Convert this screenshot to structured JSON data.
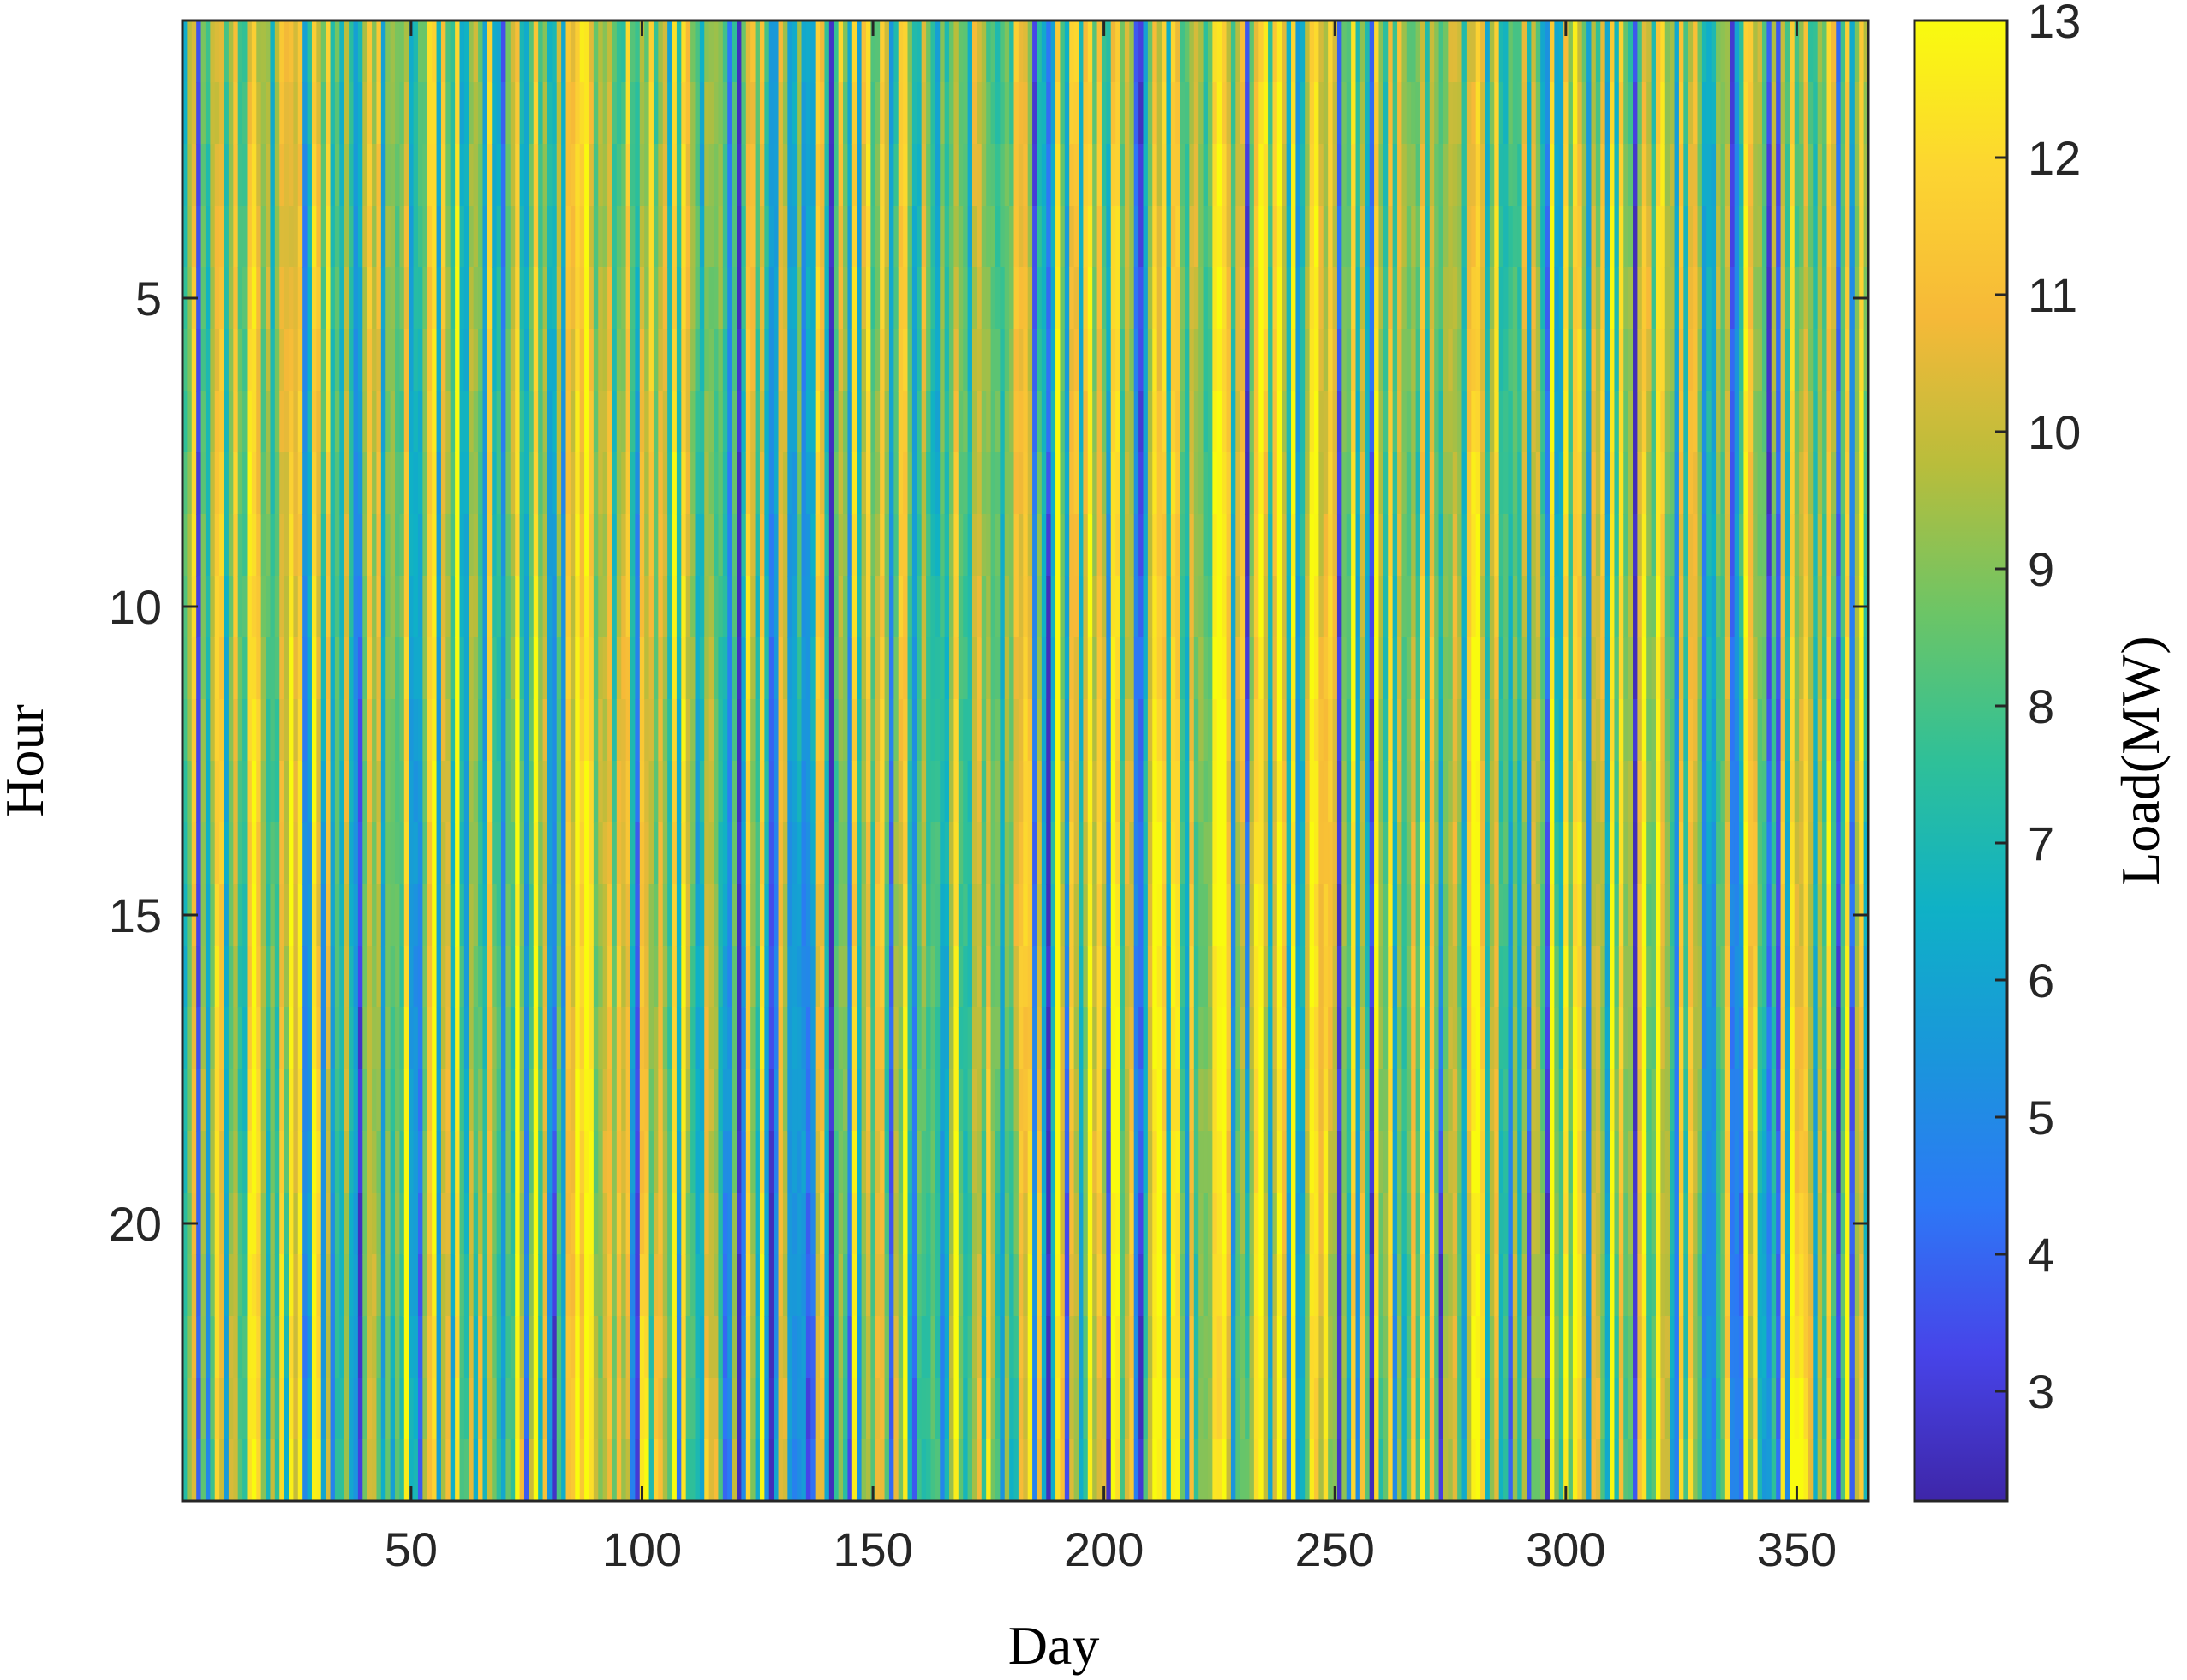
{
  "chart_data": {
    "type": "heatmap",
    "title": "",
    "xlabel": "Day",
    "ylabel": "Hour",
    "xlim": [
      1,
      365
    ],
    "ylim": [
      1,
      24
    ],
    "y_reversed": true,
    "x_ticks": [
      "50",
      "100",
      "150",
      "200",
      "250",
      "300",
      "350"
    ],
    "x_tick_values": [
      50,
      100,
      150,
      200,
      250,
      300,
      350
    ],
    "y_ticks": [
      "5",
      "10",
      "15",
      "20"
    ],
    "y_tick_values": [
      5,
      10,
      15,
      20
    ],
    "colorbar": {
      "label": "Load(MW)",
      "range": [
        2.2,
        13
      ],
      "ticks": [
        "3",
        "4",
        "5",
        "6",
        "7",
        "8",
        "9",
        "10",
        "11",
        "12",
        "13"
      ],
      "tick_values": [
        3,
        4,
        5,
        6,
        7,
        8,
        9,
        10,
        11,
        12,
        13
      ],
      "colormap": "parula",
      "colormap_stops": [
        "#3E26A8",
        "#4744E9",
        "#2D78F6",
        "#1A96DB",
        "#0FB1C6",
        "#2FC098",
        "#6CC566",
        "#B9BD3B",
        "#F6B938",
        "#FCD531",
        "#F9FB0E"
      ]
    },
    "value_range_observed": [
      2.5,
      13
    ],
    "notes_on_data": "Daily load values (MW) by day (1-365) and hour (1-24); strong vertical banding, individual cells not printed",
    "grid": false
  }
}
